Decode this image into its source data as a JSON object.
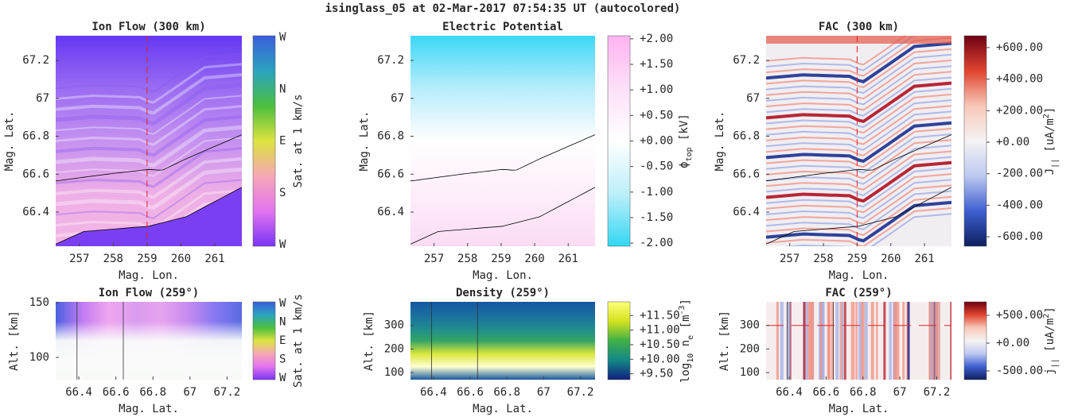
{
  "title": "isinglass_05 at 02-Mar-2017 07:54:35 UT (autocolored)",
  "chart_data": [
    {
      "type": "heatmap",
      "title": "Ion Flow (300 km)",
      "xlabel": "Mag. Lon.",
      "ylabel": "Mag. Lat.",
      "xlim": [
        256.3,
        261.8
      ],
      "ylim": [
        66.22,
        67.33
      ],
      "xticks": [
        257,
        258,
        259,
        260,
        261
      ],
      "yticks": [
        66.4,
        66.6,
        66.8,
        67,
        67.2
      ],
      "colormap": [
        "#3b5ddb",
        "#2aa3bf",
        "#4cbf3f",
        "#dce33f",
        "#f6a7b6",
        "#e274ef",
        "#7a35f5"
      ],
      "cbar_categories": [
        "W",
        "N",
        "E",
        "S",
        "W"
      ],
      "cbar_label": [
        {
          "text": "Sat. at 1 km/s"
        }
      ],
      "cut_x": 259
    },
    {
      "type": "heatmap",
      "title": "Electric Potential",
      "xlabel": "Mag. Lon.",
      "ylabel": "Mag. Lat.",
      "xlim": [
        256.3,
        261.8
      ],
      "ylim": [
        66.22,
        67.33
      ],
      "xticks": [
        257,
        258,
        259,
        260,
        261
      ],
      "yticks": [
        66.4,
        66.6,
        66.8,
        67,
        67.2
      ],
      "colormap": [
        "#ffb3f2",
        "#fde0f8",
        "#ffffff",
        "#bdeffa",
        "#33d7f2"
      ],
      "clim": [
        -2.06,
        2.06
      ],
      "cbar_ticks": [
        {
          "value": 2,
          "label": "+2.00"
        },
        {
          "value": 1.5,
          "label": "+1.50"
        },
        {
          "value": 1,
          "label": "+1.00"
        },
        {
          "value": 0.5,
          "label": "+0.50"
        },
        {
          "value": 0,
          "label": "+0.00"
        },
        {
          "value": -0.5,
          "label": "-0.50"
        },
        {
          "value": -1,
          "label": "-1.00"
        },
        {
          "value": -1.5,
          "label": "-1.50"
        },
        {
          "value": -2,
          "label": "-2.00"
        }
      ],
      "cbar_label": [
        {
          "text": "ϕ"
        },
        {
          "text": "top",
          "shift": "sub"
        },
        {
          "text": " [kV]"
        }
      ]
    },
    {
      "type": "heatmap",
      "title": "FAC (300 km)",
      "xlabel": "Mag. Lon.",
      "ylabel": "Mag. Lat.",
      "xlim": [
        256.3,
        261.8
      ],
      "ylim": [
        66.22,
        67.33
      ],
      "xticks": [
        257,
        258,
        259,
        260,
        261
      ],
      "yticks": [
        66.4,
        66.6,
        66.8,
        67,
        67.2
      ],
      "colormap": [
        "#6e0012",
        "#e0442f",
        "#f8c8b8",
        "#f5f3f4",
        "#bcc8f0",
        "#3e5fd0",
        "#0e1f5e"
      ],
      "clim": [
        -660,
        675
      ],
      "cbar_ticks": [
        {
          "value": 600,
          "label": "+600.00"
        },
        {
          "value": 400,
          "label": "+400.00"
        },
        {
          "value": 200,
          "label": "+200.00"
        },
        {
          "value": 0,
          "label": "+0.00"
        },
        {
          "value": -200,
          "label": "-200.00"
        },
        {
          "value": -400,
          "label": "-400.00"
        },
        {
          "value": -600,
          "label": "-600.00"
        }
      ],
      "cbar_label": [
        {
          "text": "J"
        },
        {
          "text": "||",
          "shift": "sub"
        },
        {
          "text": "  [uA/m"
        },
        {
          "text": "2",
          "shift": "super"
        },
        {
          "text": "]"
        }
      ],
      "cut_x": 259
    },
    {
      "type": "heatmap",
      "title": "Ion Flow (259°)",
      "xlabel": "Mag. Lat.",
      "ylabel": "Alt. [km]",
      "xlim": [
        66.275,
        67.28
      ],
      "ylim": [
        79.7,
        150.7
      ],
      "xticks": [
        66.4,
        66.6,
        66.8,
        67,
        67.2
      ],
      "yticks": [
        100,
        150
      ],
      "colormap": [
        "#3b5ddb",
        "#2aa3bf",
        "#4cbf3f",
        "#dce33f",
        "#f6a7b6",
        "#e274ef",
        "#7a35f5"
      ],
      "cbar_categories": [
        "W",
        "N",
        "E",
        "S",
        "W"
      ],
      "cbar_label": [
        {
          "text": "Sat. at 1 km/s"
        }
      ],
      "boundaries": [
        66.39,
        66.64
      ]
    },
    {
      "type": "heatmap",
      "title": "Density (259°)",
      "xlabel": "Mag. Lat.",
      "ylabel": "Alt. [km]",
      "xlim": [
        66.275,
        67.28
      ],
      "ylim": [
        70,
        400
      ],
      "xticks": [
        66.4,
        66.6,
        66.8,
        67,
        67.2
      ],
      "yticks": [
        100,
        200,
        300
      ],
      "colormap": [
        "#ffff7a",
        "#d3e21f",
        "#3fb047",
        "#138787",
        "#12207f"
      ],
      "clim": [
        9.3,
        11.97
      ],
      "cbar_ticks": [
        {
          "value": 11.5,
          "label": "+11.50"
        },
        {
          "value": 11,
          "label": "+11.00"
        },
        {
          "value": 10.5,
          "label": "+10.50"
        },
        {
          "value": 10,
          "label": "+10.00"
        },
        {
          "value": 9.5,
          "label": "+9.50"
        }
      ],
      "cbar_label": [
        {
          "text": "log"
        },
        {
          "text": "10",
          "shift": "sub"
        },
        {
          "text": " n"
        },
        {
          "text": "e",
          "shift": "sub"
        },
        {
          "text": " [m"
        },
        {
          "text": "-3",
          "shift": "super"
        },
        {
          "text": "]"
        }
      ],
      "boundaries": [
        66.39,
        66.64
      ]
    },
    {
      "type": "heatmap",
      "title": "FAC (259°)",
      "xlabel": "Mag. Lat.",
      "ylabel": "Alt. [km]",
      "xlim": [
        66.275,
        67.28
      ],
      "ylim": [
        70,
        400
      ],
      "xticks": [
        66.4,
        66.6,
        66.8,
        67,
        67.2
      ],
      "yticks": [
        100,
        200,
        300
      ],
      "colormap": [
        "#6e0012",
        "#e0442f",
        "#f8c8b8",
        "#f5f3f4",
        "#bcc8f0",
        "#3e5fd0",
        "#0e1f5e"
      ],
      "clim": [
        -657,
        743
      ],
      "cbar_ticks": [
        {
          "value": 500,
          "label": "+500.00"
        },
        {
          "value": 0,
          "label": "+0.00"
        },
        {
          "value": -500,
          "label": "-500.00"
        }
      ],
      "cbar_label": [
        {
          "text": "j"
        },
        {
          "text": "||",
          "shift": "sub"
        },
        {
          "text": "  [uA/m"
        },
        {
          "text": "2",
          "shift": "super"
        },
        {
          "text": "]"
        }
      ],
      "cut_y": 300,
      "boundaries": [
        66.39,
        66.64
      ]
    }
  ]
}
